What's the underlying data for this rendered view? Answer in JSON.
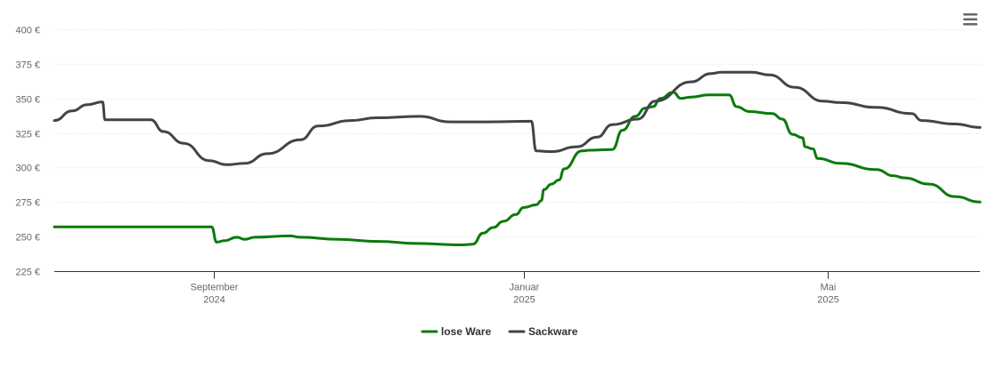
{
  "chart_data": {
    "type": "line",
    "title": "",
    "xlabel": "",
    "ylabel": "",
    "x_range": [
      "2024-06-30",
      "2025-06-30"
    ],
    "ylim": [
      225,
      400
    ],
    "y_ticks": [
      400,
      375,
      350,
      325,
      300,
      275,
      250,
      225
    ],
    "y_tick_labels": [
      "400 €",
      "375 €",
      "350 €",
      "325 €",
      "300 €",
      "275 €",
      "250 €",
      "225 €"
    ],
    "x_ticks": [
      {
        "date": "2024-09-01",
        "line1": "September",
        "line2": "2024"
      },
      {
        "date": "2025-01-01",
        "line1": "Januar",
        "line2": "2025"
      },
      {
        "date": "2025-05-01",
        "line1": "Mai",
        "line2": "2025"
      }
    ],
    "grid": true,
    "legend_position": "bottom-center",
    "series": [
      {
        "name": "lose Ware",
        "color": "#0a7a0a",
        "points": [
          [
            "2024-06-30",
            257
          ],
          [
            "2024-08-31",
            257
          ],
          [
            "2024-09-02",
            246
          ],
          [
            "2024-09-05",
            247
          ],
          [
            "2024-09-10",
            249.5
          ],
          [
            "2024-09-13",
            248
          ],
          [
            "2024-09-17",
            249.5
          ],
          [
            "2024-10-01",
            250.5
          ],
          [
            "2024-10-05",
            249.5
          ],
          [
            "2024-10-20",
            248
          ],
          [
            "2024-11-05",
            246.5
          ],
          [
            "2024-11-20",
            245
          ],
          [
            "2024-12-08",
            244
          ],
          [
            "2024-12-12",
            244.5
          ],
          [
            "2024-12-16",
            252.5
          ],
          [
            "2024-12-20",
            256.5
          ],
          [
            "2024-12-24",
            261
          ],
          [
            "2024-12-29",
            266
          ],
          [
            "2025-01-01",
            271
          ],
          [
            "2025-01-06",
            273
          ],
          [
            "2025-01-08",
            276
          ],
          [
            "2025-01-09",
            284
          ],
          [
            "2025-01-12",
            288
          ],
          [
            "2025-01-15",
            291
          ],
          [
            "2025-01-17",
            299
          ],
          [
            "2025-01-24",
            312
          ],
          [
            "2025-01-27",
            312.5
          ],
          [
            "2025-02-05",
            313
          ],
          [
            "2025-02-09",
            327
          ],
          [
            "2025-02-14",
            337
          ],
          [
            "2025-02-18",
            343
          ],
          [
            "2025-02-21",
            344
          ],
          [
            "2025-02-24",
            350
          ],
          [
            "2025-03-01",
            354.5
          ],
          [
            "2025-03-04",
            350
          ],
          [
            "2025-03-08",
            351
          ],
          [
            "2025-03-15",
            352.5
          ],
          [
            "2025-03-23",
            352.5
          ],
          [
            "2025-03-26",
            344
          ],
          [
            "2025-03-31",
            340.5
          ],
          [
            "2025-04-09",
            339
          ],
          [
            "2025-04-13",
            335
          ],
          [
            "2025-04-17",
            324
          ],
          [
            "2025-04-21",
            321.5
          ],
          [
            "2025-04-22",
            315
          ],
          [
            "2025-04-25",
            313.5
          ],
          [
            "2025-04-27",
            306.5
          ],
          [
            "2025-05-06",
            303
          ],
          [
            "2025-05-20",
            298.5
          ],
          [
            "2025-05-27",
            294
          ],
          [
            "2025-05-31",
            292.5
          ],
          [
            "2025-06-10",
            288
          ],
          [
            "2025-06-20",
            279
          ],
          [
            "2025-06-30",
            275
          ]
        ]
      },
      {
        "name": "Sackware",
        "color": "#434348",
        "points": [
          [
            "2024-06-30",
            334
          ],
          [
            "2024-07-07",
            341
          ],
          [
            "2024-07-13",
            345.5
          ],
          [
            "2024-07-19",
            347.5
          ],
          [
            "2024-07-20",
            334.5
          ],
          [
            "2024-07-27",
            334.5
          ],
          [
            "2024-08-07",
            334.5
          ],
          [
            "2024-08-12",
            326
          ],
          [
            "2024-08-20",
            317.5
          ],
          [
            "2024-08-30",
            305
          ],
          [
            "2024-09-06",
            302
          ],
          [
            "2024-09-13",
            303
          ],
          [
            "2024-09-22",
            310
          ],
          [
            "2024-10-05",
            320
          ],
          [
            "2024-10-12",
            330
          ],
          [
            "2024-10-25",
            334
          ],
          [
            "2024-11-04",
            336
          ],
          [
            "2024-11-21",
            337
          ],
          [
            "2024-12-03",
            333
          ],
          [
            "2024-12-18",
            333
          ],
          [
            "2025-01-04",
            333.5
          ],
          [
            "2025-01-06",
            312
          ],
          [
            "2025-01-12",
            311.5
          ],
          [
            "2025-01-22",
            315
          ],
          [
            "2025-01-30",
            322
          ],
          [
            "2025-02-05",
            331
          ],
          [
            "2025-02-15",
            335
          ],
          [
            "2025-02-22",
            348
          ],
          [
            "2025-03-08",
            362
          ],
          [
            "2025-03-16",
            368
          ],
          [
            "2025-03-20",
            369
          ],
          [
            "2025-04-01",
            369
          ],
          [
            "2025-04-08",
            367
          ],
          [
            "2025-04-18",
            358
          ],
          [
            "2025-04-29",
            348
          ],
          [
            "2025-05-06",
            347
          ],
          [
            "2025-05-20",
            343.5
          ],
          [
            "2025-06-03",
            339
          ],
          [
            "2025-06-07",
            334
          ],
          [
            "2025-06-20",
            331.5
          ],
          [
            "2025-06-30",
            329
          ]
        ]
      }
    ]
  },
  "ui": {
    "menu_icon": "hamburger-menu-icon"
  }
}
